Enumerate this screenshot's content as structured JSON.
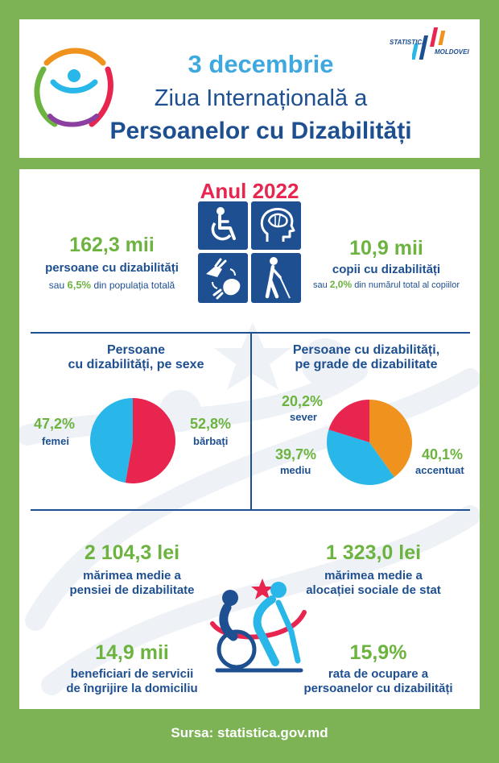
{
  "header": {
    "date": "3 decembrie",
    "title_line1": "Ziua Internațională a",
    "title_line2": "Persoanelor cu Dizabilități",
    "logo_text_top": "STATISTICA",
    "logo_text_bottom": "MOLDOVEI"
  },
  "year_title": "Anul 2022",
  "stats_top": {
    "persons": {
      "value": "162,3 mii",
      "label": "persoane cu dizabilități",
      "note_prefix": "sau",
      "note_percent": "6,5%",
      "note_suffix": "din populația totală"
    },
    "children": {
      "value": "10,9 mii",
      "label": "copii cu dizabilități",
      "note_prefix": "sau",
      "note_percent": "2,0%",
      "note_suffix": "din numărul total al copiilor"
    }
  },
  "icons": [
    "wheelchair-icon",
    "brain-icon",
    "sign-language-icon",
    "blind-person-icon"
  ],
  "sex_section": {
    "title_line1": "Persoane",
    "title_line2": "cu dizabilități, pe sexe",
    "female_value": "47,2%",
    "female_label": "femei",
    "male_value": "52,8%",
    "male_label": "bărbați"
  },
  "grade_section": {
    "title_line1": "Persoane cu dizabilități,",
    "title_line2": "pe grade de dizabilitate",
    "sever_value": "20,2%",
    "sever_label": "sever",
    "mediu_value": "39,7%",
    "mediu_label": "mediu",
    "accentuat_value": "40,1%",
    "accentuat_label": "accentuat"
  },
  "chart_data": [
    {
      "type": "pie",
      "categories": [
        "femei",
        "bărbați"
      ],
      "values": [
        47.2,
        52.8
      ],
      "colors": [
        "#29b6e8",
        "#e8254f"
      ]
    },
    {
      "type": "pie",
      "categories": [
        "sever",
        "mediu",
        "accentuat"
      ],
      "values": [
        20.2,
        39.7,
        40.1
      ],
      "colors": [
        "#e8254f",
        "#29b6e8",
        "#f0921e"
      ]
    }
  ],
  "stats_bottom": {
    "pension": {
      "value": "2 104,3 lei",
      "label_line1": "mărimea medie a",
      "label_line2": "pensiei de dizabilitate"
    },
    "allowance": {
      "value": "1 323,0 lei",
      "label_line1": "mărimea medie a",
      "label_line2": "alocației sociale de stat"
    },
    "beneficiaries": {
      "value": "14,9 mii",
      "label_line1": "beneficiari de servicii",
      "label_line2": "de îngrijire la domiciliu"
    },
    "employment": {
      "value": "15,9%",
      "label_line1": "rata de ocupare a",
      "label_line2": "persoanelor cu dizabilități"
    }
  },
  "footer": {
    "source": "Sursa: statistica.gov.md"
  },
  "colors": {
    "green": "#6cb33f",
    "navy": "#1d4f91",
    "red": "#e8254f",
    "blue": "#29b6e8",
    "orange": "#f0921e",
    "bg_green": "#7db354"
  }
}
